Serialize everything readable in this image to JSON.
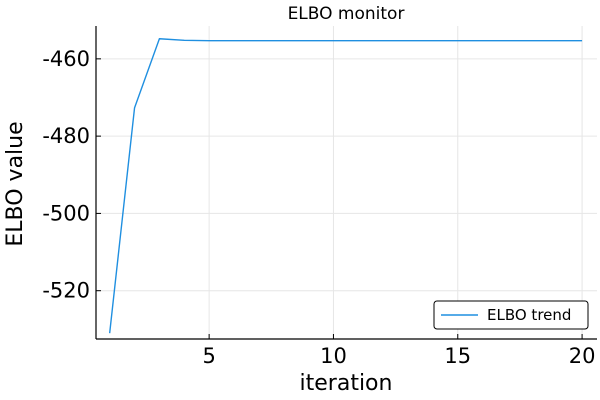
{
  "chart_data": {
    "type": "line",
    "title": "ELBO monitor",
    "xlabel": "iteration",
    "ylabel": "ELBO value",
    "xlim": [
      0.45,
      20.6
    ],
    "ylim": [
      -532.5,
      -451.5
    ],
    "xticks": [
      5,
      10,
      15,
      20
    ],
    "yticks": [
      -460,
      -480,
      -500,
      -520
    ],
    "grid": true,
    "legend_position": "bottom-right",
    "colors": {
      "series": "#1f8fe0",
      "grid": "#e6e6e6",
      "axis": "#000000"
    },
    "series": [
      {
        "name": "ELBO trend",
        "x": [
          1,
          2,
          3,
          4,
          5,
          6,
          7,
          8,
          9,
          10,
          11,
          12,
          13,
          14,
          15,
          16,
          17,
          18,
          19,
          20
        ],
        "y": [
          -531,
          -472.7,
          -454.8,
          -455.2,
          -455.3,
          -455.3,
          -455.3,
          -455.3,
          -455.3,
          -455.3,
          -455.3,
          -455.3,
          -455.3,
          -455.3,
          -455.3,
          -455.3,
          -455.3,
          -455.3,
          -455.3,
          -455.3
        ]
      }
    ]
  }
}
